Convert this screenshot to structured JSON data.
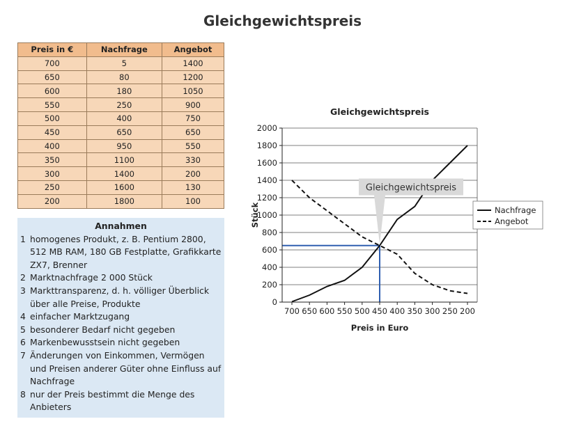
{
  "page": {
    "title": "Gleichgewichtspreis"
  },
  "table": {
    "headers": [
      "Preis in €",
      "Nachfrage",
      "Angebot"
    ],
    "rows": [
      [
        "700",
        "5",
        "1400"
      ],
      [
        "650",
        "80",
        "1200"
      ],
      [
        "600",
        "180",
        "1050"
      ],
      [
        "550",
        "250",
        "900"
      ],
      [
        "500",
        "400",
        "750"
      ],
      [
        "450",
        "650",
        "650"
      ],
      [
        "400",
        "950",
        "550"
      ],
      [
        "350",
        "1100",
        "330"
      ],
      [
        "300",
        "1400",
        "200"
      ],
      [
        "250",
        "1600",
        "130"
      ],
      [
        "200",
        "1800",
        "100"
      ]
    ]
  },
  "assumptions": {
    "title": "Annahmen",
    "items": [
      "homogenes Produkt, z. B. Pentium 2800, 512 MB RAM, 180 GB Festplatte, Grafikkarte ZX7, Brenner",
      "Marktnachfrage 2 000 Stück",
      "Markttransparenz, d. h. völliger Überblick über alle Preise, Produkte",
      "einfacher Marktzugang",
      "besonderer Bedarf nicht gegeben",
      "Markenbewusstsein nicht gegeben",
      "Änderungen von Einkommen, Vermögen und Preisen anderer Güter ohne Einfluss auf Nachfrage",
      "nur der Preis bestimmt die Menge des Anbieters"
    ]
  },
  "chart_data": {
    "type": "line",
    "title": "Gleichgewichtspreis",
    "xlabel": "Preis in Euro",
    "ylabel": "Stück",
    "x": [
      700,
      650,
      600,
      550,
      500,
      450,
      400,
      350,
      300,
      250,
      200
    ],
    "x_reversed": true,
    "ylim": [
      0,
      2000
    ],
    "yticks": [
      0,
      200,
      400,
      600,
      800,
      1000,
      1200,
      1400,
      1600,
      1800,
      2000
    ],
    "grid": "horizontal",
    "legend_position": "right",
    "series": [
      {
        "name": "Nachfrage",
        "style": "solid",
        "values": [
          5,
          80,
          180,
          250,
          400,
          650,
          950,
          1100,
          1400,
          1600,
          1800
        ]
      },
      {
        "name": "Angebot",
        "style": "dashed",
        "values": [
          1400,
          1200,
          1050,
          900,
          750,
          650,
          550,
          330,
          200,
          130,
          100
        ]
      }
    ],
    "annotation": {
      "text": "Gleichgewichtspreis",
      "x": 450,
      "y": 650
    },
    "equilibrium": {
      "x": 450,
      "y": 650,
      "color": "#2f5fb0"
    }
  }
}
